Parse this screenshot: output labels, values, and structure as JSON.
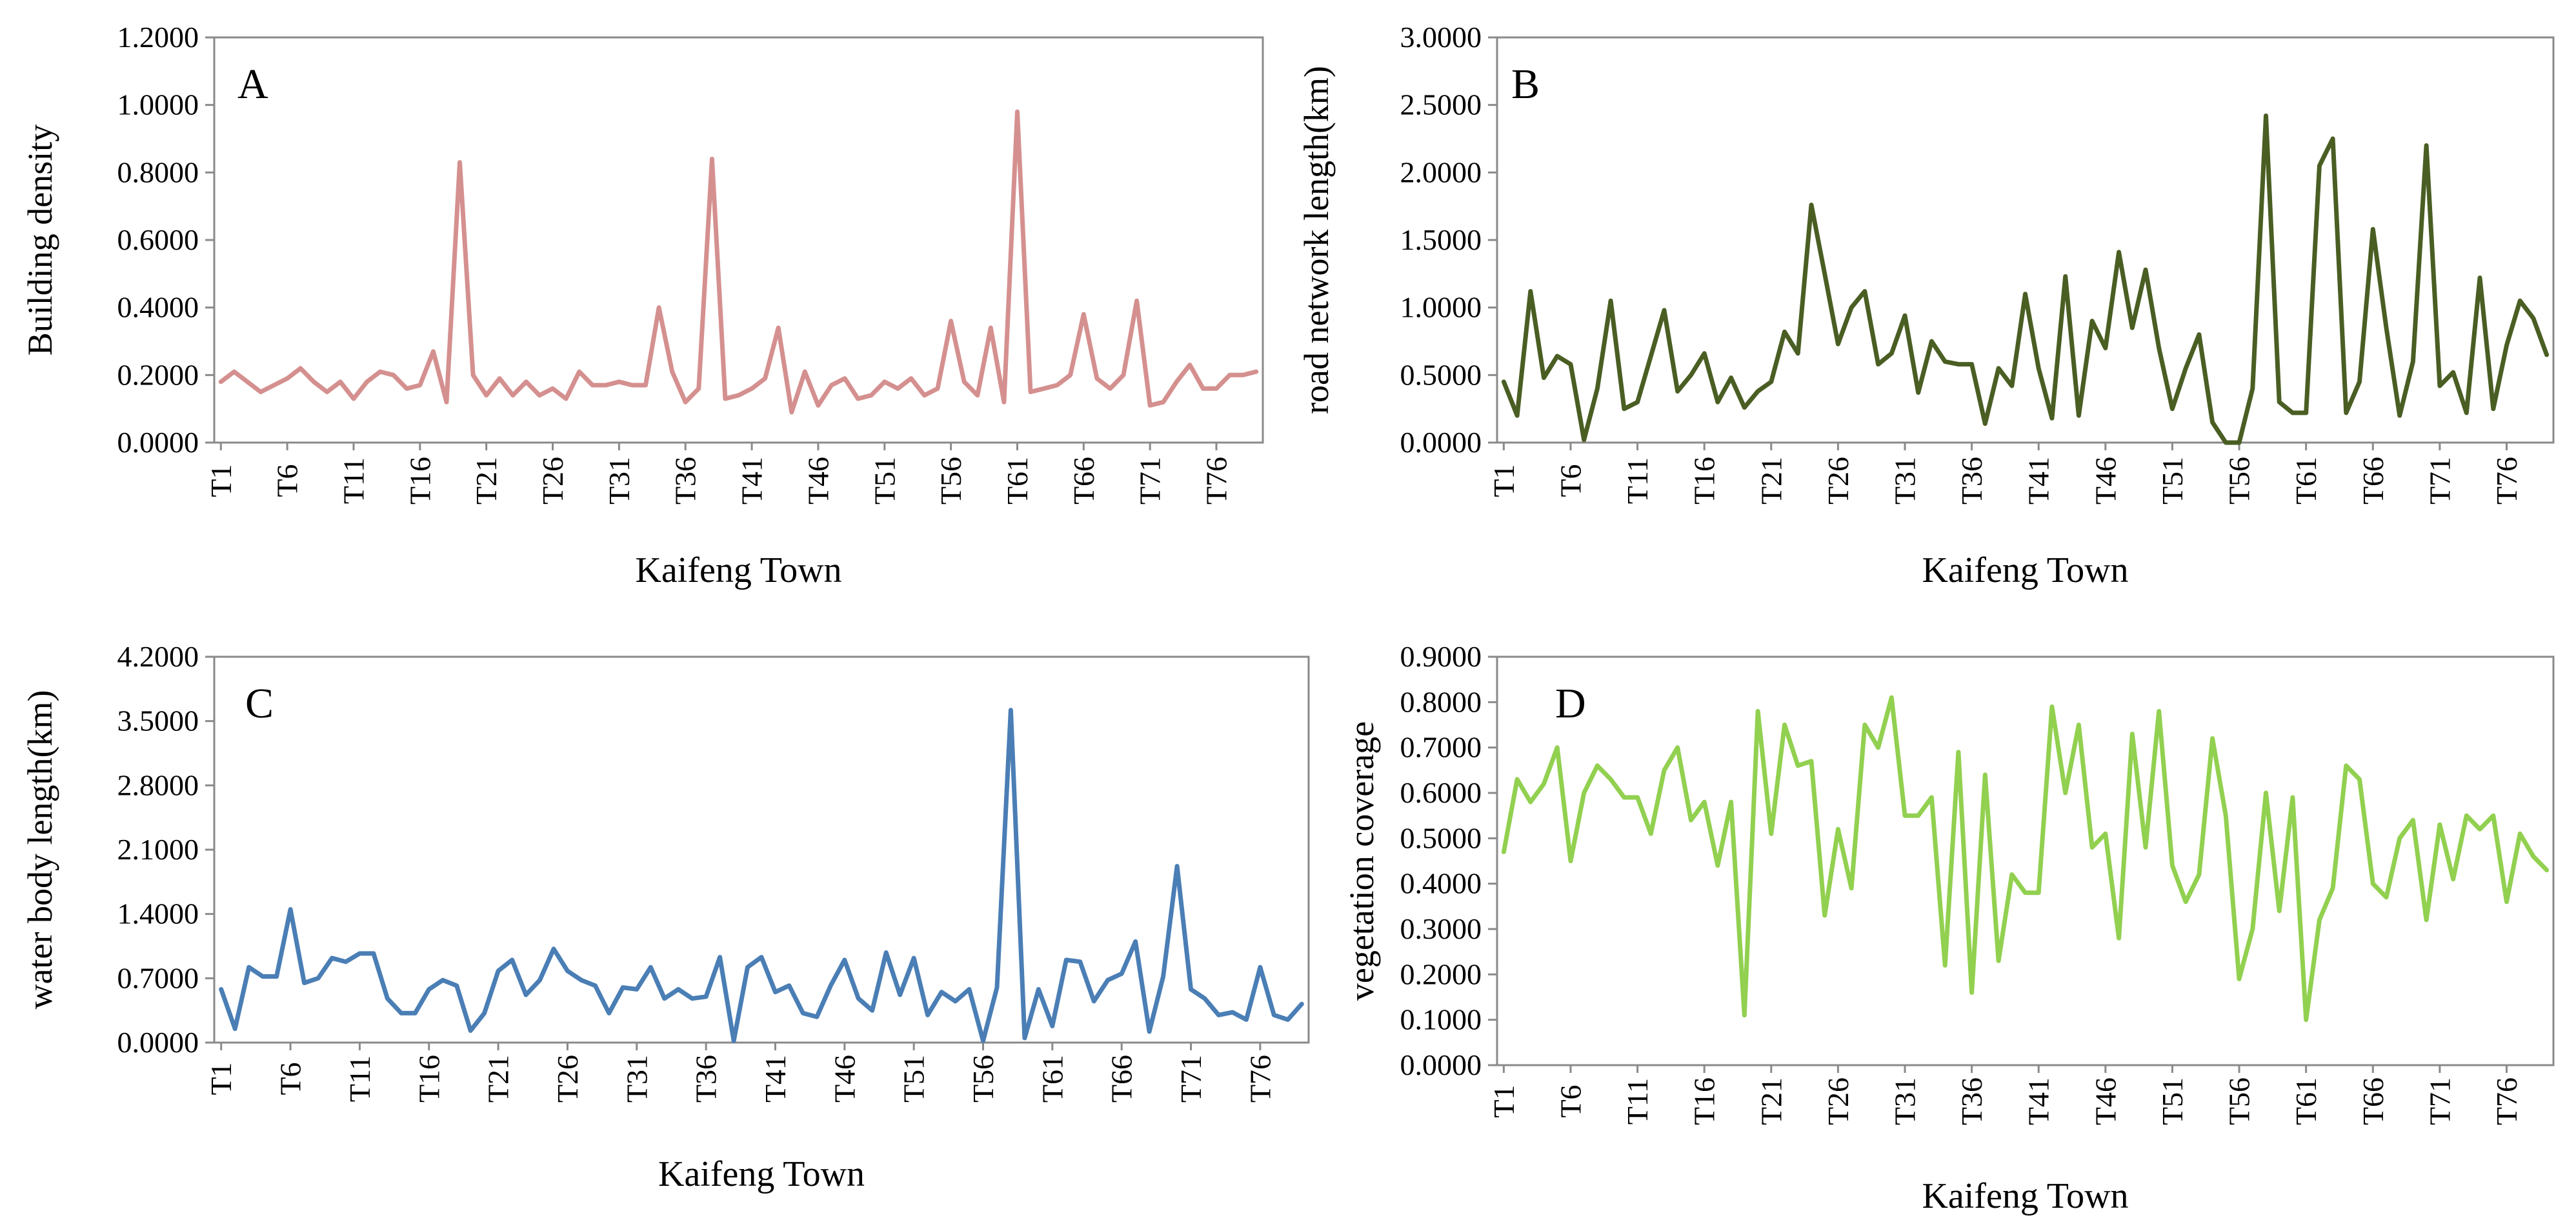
{
  "chart_data": [
    {
      "panel": "A",
      "type": "line",
      "title": "",
      "panel_label": "A",
      "xlabel": "Kaifeng Town",
      "ylabel": "Building density",
      "ylim": [
        0,
        1.2
      ],
      "yticks": [
        "0.0000",
        "0.2000",
        "0.4000",
        "0.6000",
        "0.8000",
        "1.0000",
        "1.2000"
      ],
      "xticks": [
        "T1",
        "T6",
        "T11",
        "T16",
        "T21",
        "T26",
        "T31",
        "T36",
        "T41",
        "T46",
        "T51",
        "T56",
        "T61",
        "T66",
        "T71",
        "T76"
      ],
      "color": "#D4908F",
      "series": [
        {
          "name": "Building density",
          "values": [
            0.18,
            0.21,
            0.18,
            0.15,
            0.17,
            0.19,
            0.22,
            0.18,
            0.15,
            0.18,
            0.13,
            0.18,
            0.21,
            0.2,
            0.16,
            0.17,
            0.27,
            0.12,
            0.83,
            0.2,
            0.14,
            0.19,
            0.14,
            0.18,
            0.14,
            0.16,
            0.13,
            0.21,
            0.17,
            0.17,
            0.18,
            0.17,
            0.17,
            0.4,
            0.21,
            0.12,
            0.16,
            0.84,
            0.13,
            0.14,
            0.16,
            0.19,
            0.34,
            0.09,
            0.21,
            0.11,
            0.17,
            0.19,
            0.13,
            0.14,
            0.18,
            0.16,
            0.19,
            0.14,
            0.16,
            0.36,
            0.18,
            0.14,
            0.34,
            0.12,
            0.98,
            0.15,
            0.16,
            0.17,
            0.2,
            0.38,
            0.19,
            0.16,
            0.2,
            0.42,
            0.11,
            0.12,
            0.18,
            0.23,
            0.16,
            0.16,
            0.2,
            0.2,
            0.21
          ]
        }
      ]
    },
    {
      "panel": "B",
      "type": "line",
      "title": "",
      "panel_label": "B",
      "xlabel": "Kaifeng Town",
      "ylabel": "road network length(km)",
      "ylim": [
        0,
        3.0
      ],
      "yticks": [
        "0.0000",
        "0.5000",
        "1.0000",
        "1.5000",
        "2.0000",
        "2.5000",
        "3.0000"
      ],
      "xticks": [
        "T1",
        "T6",
        "T11",
        "T16",
        "T21",
        "T26",
        "T31",
        "T36",
        "T41",
        "T46",
        "T51",
        "T56",
        "T61",
        "T66",
        "T71",
        "T76"
      ],
      "color": "#4A5E23",
      "series": [
        {
          "name": "road network length",
          "values": [
            0.45,
            0.2,
            1.12,
            0.48,
            0.64,
            0.58,
            0.02,
            0.4,
            1.05,
            0.25,
            0.3,
            0.64,
            0.98,
            0.38,
            0.5,
            0.66,
            0.3,
            0.48,
            0.26,
            0.38,
            0.45,
            0.82,
            0.66,
            1.76,
            1.25,
            0.73,
            1.0,
            1.12,
            0.58,
            0.66,
            0.94,
            0.37,
            0.75,
            0.6,
            0.58,
            0.58,
            0.14,
            0.55,
            0.42,
            1.1,
            0.55,
            0.18,
            1.23,
            0.2,
            0.9,
            0.7,
            1.41,
            0.85,
            1.28,
            0.7,
            0.25,
            0.55,
            0.8,
            0.15,
            0.0,
            0.0,
            0.4,
            2.42,
            0.3,
            0.22,
            0.22,
            2.05,
            2.25,
            0.22,
            0.45,
            1.58,
            0.85,
            0.2,
            0.6,
            2.2,
            0.42,
            0.52,
            0.22,
            1.22,
            0.25,
            0.72,
            1.05,
            0.92,
            0.65
          ]
        }
      ]
    },
    {
      "panel": "C",
      "type": "line",
      "title": "",
      "panel_label": "C",
      "xlabel": "Kaifeng Town",
      "ylabel": "water body length(km)",
      "ylim": [
        0,
        4.2
      ],
      "yticks": [
        "0.0000",
        "0.7000",
        "1.4000",
        "2.1000",
        "2.8000",
        "3.5000",
        "4.2000"
      ],
      "xticks": [
        "T1",
        "T6",
        "T11",
        "T16",
        "T21",
        "T26",
        "T31",
        "T36",
        "T41",
        "T46",
        "T51",
        "T56",
        "T61",
        "T66",
        "T71",
        "T76"
      ],
      "color": "#4A7EB5",
      "series": [
        {
          "name": "water body length",
          "values": [
            0.58,
            0.15,
            0.82,
            0.72,
            0.72,
            1.45,
            0.65,
            0.7,
            0.92,
            0.88,
            0.97,
            0.97,
            0.48,
            0.32,
            0.32,
            0.58,
            0.68,
            0.62,
            0.13,
            0.32,
            0.78,
            0.9,
            0.52,
            0.68,
            1.02,
            0.78,
            0.68,
            0.62,
            0.32,
            0.6,
            0.58,
            0.82,
            0.48,
            0.58,
            0.48,
            0.5,
            0.93,
            0.02,
            0.82,
            0.93,
            0.55,
            0.62,
            0.32,
            0.28,
            0.62,
            0.9,
            0.48,
            0.35,
            0.98,
            0.52,
            0.92,
            0.3,
            0.55,
            0.45,
            0.58,
            0.02,
            0.6,
            3.62,
            0.05,
            0.58,
            0.18,
            0.9,
            0.88,
            0.45,
            0.68,
            0.75,
            1.1,
            0.12,
            0.72,
            1.92,
            0.58,
            0.48,
            0.3,
            0.33,
            0.25,
            0.82,
            0.3,
            0.25,
            0.42
          ]
        }
      ]
    },
    {
      "panel": "D",
      "type": "line",
      "title": "",
      "panel_label": "D",
      "xlabel": "Kaifeng Town",
      "ylabel": "vegetation coverage",
      "ylim": [
        0,
        0.9
      ],
      "yticks": [
        "0.0000",
        "0.1000",
        "0.2000",
        "0.3000",
        "0.4000",
        "0.5000",
        "0.6000",
        "0.7000",
        "0.8000",
        "0.9000"
      ],
      "xticks": [
        "T1",
        "T6",
        "T11",
        "T16",
        "T21",
        "T26",
        "T31",
        "T36",
        "T41",
        "T46",
        "T51",
        "T56",
        "T61",
        "T66",
        "T71",
        "T76"
      ],
      "color": "#92D050",
      "series": [
        {
          "name": "vegetation coverage",
          "values": [
            0.47,
            0.63,
            0.58,
            0.62,
            0.7,
            0.45,
            0.6,
            0.66,
            0.63,
            0.59,
            0.59,
            0.51,
            0.65,
            0.7,
            0.54,
            0.58,
            0.44,
            0.58,
            0.11,
            0.78,
            0.51,
            0.75,
            0.66,
            0.67,
            0.33,
            0.52,
            0.39,
            0.75,
            0.7,
            0.81,
            0.55,
            0.55,
            0.59,
            0.22,
            0.69,
            0.16,
            0.64,
            0.23,
            0.42,
            0.38,
            0.38,
            0.79,
            0.6,
            0.75,
            0.48,
            0.51,
            0.28,
            0.73,
            0.48,
            0.78,
            0.44,
            0.36,
            0.42,
            0.72,
            0.55,
            0.19,
            0.3,
            0.6,
            0.34,
            0.59,
            0.1,
            0.32,
            0.39,
            0.66,
            0.63,
            0.4,
            0.37,
            0.5,
            0.54,
            0.32,
            0.53,
            0.41,
            0.55,
            0.52,
            0.55,
            0.36,
            0.51,
            0.46,
            0.43
          ]
        }
      ]
    }
  ]
}
